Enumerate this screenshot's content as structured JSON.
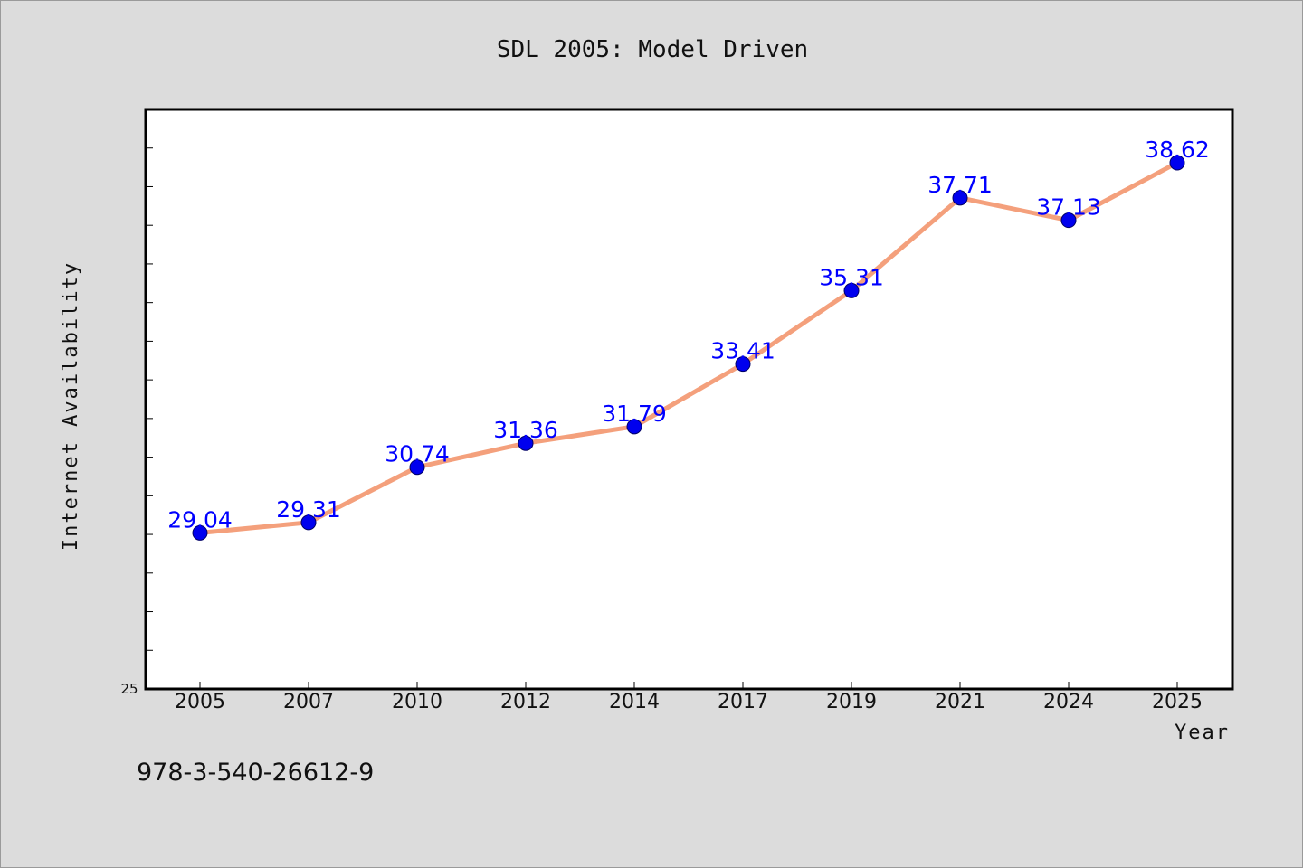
{
  "footer_code": "978-3-540-26612-9",
  "colors": {
    "background": "#dcdcdc",
    "plot_background": "#ffffff",
    "line": "#f4a07c",
    "marker": "#0000ee",
    "data_label": "#0000ff",
    "axis": "#000000"
  },
  "chart_data": {
    "type": "line",
    "title": "SDL 2005: Model Driven",
    "xlabel": "Year",
    "ylabel": "Internet Availability",
    "categories": [
      "2005",
      "2007",
      "2010",
      "2012",
      "2014",
      "2017",
      "2019",
      "2021",
      "2024",
      "2025"
    ],
    "series": [
      {
        "values": [
          29.04,
          29.31,
          30.74,
          31.36,
          31.79,
          33.41,
          35.31,
          37.71,
          37.13,
          38.62
        ],
        "labels": [
          "29.04",
          "29.31",
          "30.74",
          "31.36",
          "31.79",
          "33.41",
          "35.31",
          "37.71",
          "37.13",
          "38.62"
        ]
      }
    ],
    "ylim": [
      25,
      40
    ],
    "yticks_labeled": [
      "25"
    ],
    "grid": false,
    "legend": "none"
  }
}
